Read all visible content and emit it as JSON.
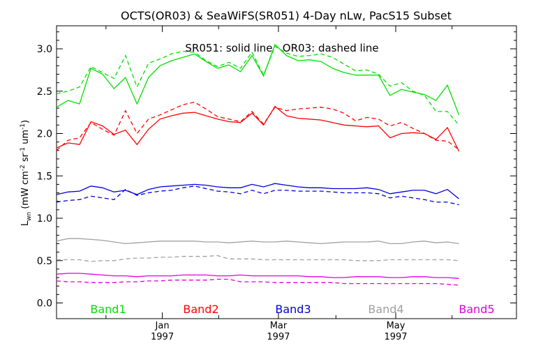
{
  "chart_data": {
    "type": "line",
    "title": "OCTS(OR03) & SeaWiFS(SR051) 4-Day nLw, PacS15 Subset",
    "annotation": "SR051: solid line   OR03: dashed line",
    "ylabel_main": "L",
    "ylabel_sub": "wn",
    "ylabel_units": "(mW cm",
    "ylabel_exp1": "-2",
    "ylabel_mid": " sr",
    "ylabel_exp2": "-1",
    "ylabel_um": " um",
    "ylabel_exp3": "-1",
    "ylabel_close": ")",
    "ylim": [
      -0.2,
      3.25
    ],
    "xlim": [
      0,
      40
    ],
    "yticks": [
      0.0,
      0.5,
      1.0,
      1.5,
      2.0,
      2.5,
      3.0
    ],
    "ytick_labels": [
      "0.0",
      "0.5",
      "1.0",
      "1.5",
      "2.0",
      "2.5",
      "3.0"
    ],
    "xticks": [
      {
        "x": 9.2,
        "month": "Jan",
        "year": "1997"
      },
      {
        "x": 19.3,
        "month": "Mar",
        "year": "1997"
      },
      {
        "x": 29.5,
        "month": "May",
        "year": "1997"
      }
    ],
    "x_minor_ticks": [
      4.3,
      14.1,
      24.3,
      34.4
    ],
    "x_index": [
      0,
      1,
      2,
      3,
      4,
      5,
      6,
      7,
      8,
      9,
      10,
      11,
      12,
      13,
      14,
      15,
      16,
      17,
      18,
      19,
      20,
      21,
      22,
      23,
      24,
      25,
      26,
      27,
      28,
      29,
      30,
      31,
      32,
      33,
      34,
      35,
      36,
      37,
      38,
      39,
      40
    ],
    "grid": false,
    "legend_position": "bottom inside plot",
    "series": [
      {
        "name": "Band1",
        "color": "#00e000",
        "style": "solid",
        "values": [
          2.31,
          2.39,
          2.35,
          2.77,
          2.7,
          2.53,
          2.66,
          2.35,
          2.66,
          2.8,
          2.86,
          2.9,
          2.94,
          2.85,
          2.77,
          2.81,
          2.73,
          2.92,
          2.68,
          3.05,
          2.92,
          2.86,
          2.87,
          2.85,
          2.77,
          2.72,
          2.69,
          2.69,
          2.69,
          2.45,
          2.52,
          2.49,
          2.46,
          2.39,
          2.57,
          2.22
        ]
      },
      {
        "name": "Band1",
        "color": "#00e000",
        "style": "dashed",
        "values": [
          2.47,
          2.5,
          2.55,
          2.79,
          2.72,
          2.65,
          2.92,
          2.55,
          2.83,
          2.88,
          2.94,
          2.97,
          2.96,
          2.86,
          2.79,
          2.84,
          2.77,
          2.96,
          2.69,
          3.03,
          2.95,
          2.91,
          2.92,
          2.94,
          2.9,
          2.82,
          2.74,
          2.75,
          2.7,
          2.56,
          2.6,
          2.5,
          2.45,
          2.26,
          2.26,
          2.1
        ]
      },
      {
        "name": "Band2",
        "color": "#ff0000",
        "style": "solid",
        "values": [
          1.83,
          1.89,
          1.87,
          2.14,
          2.09,
          1.99,
          2.04,
          1.87,
          2.05,
          2.17,
          2.21,
          2.24,
          2.25,
          2.21,
          2.17,
          2.14,
          2.13,
          2.24,
          2.1,
          2.32,
          2.21,
          2.18,
          2.17,
          2.16,
          2.13,
          2.1,
          2.09,
          2.08,
          2.09,
          1.95,
          2.0,
          2.01,
          2.0,
          1.93,
          2.07,
          1.79
        ]
      },
      {
        "name": "Band2",
        "color": "#ff0000",
        "style": "dashed",
        "values": [
          1.8,
          1.92,
          1.95,
          2.13,
          2.05,
          1.98,
          2.27,
          2.0,
          2.17,
          2.22,
          2.28,
          2.34,
          2.37,
          2.29,
          2.2,
          2.17,
          2.14,
          2.26,
          2.11,
          2.31,
          2.27,
          2.29,
          2.3,
          2.31,
          2.29,
          2.24,
          2.15,
          2.19,
          2.17,
          2.09,
          2.13,
          2.06,
          2.0,
          1.92,
          1.91,
          1.81
        ]
      },
      {
        "name": "Band3",
        "color": "#0000dd",
        "style": "solid",
        "values": [
          1.28,
          1.31,
          1.32,
          1.38,
          1.36,
          1.31,
          1.33,
          1.28,
          1.34,
          1.37,
          1.38,
          1.39,
          1.4,
          1.39,
          1.37,
          1.36,
          1.36,
          1.4,
          1.37,
          1.41,
          1.39,
          1.37,
          1.36,
          1.36,
          1.35,
          1.35,
          1.35,
          1.36,
          1.34,
          1.29,
          1.31,
          1.33,
          1.33,
          1.29,
          1.34,
          1.23
        ]
      },
      {
        "name": "Band3",
        "color": "#0000dd",
        "style": "dashed",
        "values": [
          1.19,
          1.21,
          1.22,
          1.26,
          1.24,
          1.22,
          1.34,
          1.27,
          1.3,
          1.32,
          1.33,
          1.36,
          1.38,
          1.35,
          1.32,
          1.31,
          1.29,
          1.33,
          1.29,
          1.33,
          1.33,
          1.32,
          1.32,
          1.32,
          1.31,
          1.3,
          1.3,
          1.3,
          1.29,
          1.24,
          1.26,
          1.24,
          1.22,
          1.19,
          1.19,
          1.16
        ]
      },
      {
        "name": "Band4",
        "color": "#a0a0a0",
        "style": "solid",
        "values": [
          0.73,
          0.76,
          0.76,
          0.75,
          0.74,
          0.72,
          0.7,
          0.71,
          0.72,
          0.73,
          0.73,
          0.73,
          0.73,
          0.72,
          0.72,
          0.71,
          0.72,
          0.73,
          0.72,
          0.72,
          0.73,
          0.72,
          0.71,
          0.7,
          0.71,
          0.72,
          0.72,
          0.72,
          0.73,
          0.7,
          0.7,
          0.72,
          0.73,
          0.71,
          0.72,
          0.7
        ]
      },
      {
        "name": "Band4",
        "color": "#a0a0a0",
        "style": "dashed",
        "values": [
          0.51,
          0.51,
          0.51,
          0.49,
          0.5,
          0.5,
          0.52,
          0.53,
          0.53,
          0.54,
          0.54,
          0.55,
          0.55,
          0.55,
          0.56,
          0.52,
          0.52,
          0.52,
          0.51,
          0.51,
          0.51,
          0.51,
          0.51,
          0.51,
          0.51,
          0.51,
          0.5,
          0.5,
          0.5,
          0.51,
          0.51,
          0.51,
          0.51,
          0.51,
          0.51,
          0.5
        ]
      },
      {
        "name": "Band5",
        "color": "#e000e0",
        "style": "solid",
        "values": [
          0.34,
          0.35,
          0.35,
          0.34,
          0.33,
          0.32,
          0.32,
          0.31,
          0.32,
          0.32,
          0.32,
          0.33,
          0.33,
          0.33,
          0.32,
          0.32,
          0.33,
          0.32,
          0.32,
          0.32,
          0.32,
          0.32,
          0.31,
          0.31,
          0.3,
          0.3,
          0.31,
          0.31,
          0.31,
          0.3,
          0.3,
          0.31,
          0.31,
          0.3,
          0.3,
          0.29
        ]
      },
      {
        "name": "Band5",
        "color": "#e000e0",
        "style": "dashed",
        "values": [
          0.26,
          0.25,
          0.25,
          0.24,
          0.24,
          0.24,
          0.25,
          0.25,
          0.26,
          0.26,
          0.27,
          0.27,
          0.27,
          0.27,
          0.28,
          0.28,
          0.25,
          0.25,
          0.25,
          0.24,
          0.24,
          0.24,
          0.24,
          0.24,
          0.24,
          0.23,
          0.23,
          0.23,
          0.23,
          0.23,
          0.23,
          0.23,
          0.23,
          0.23,
          0.22,
          0.21
        ]
      }
    ],
    "legend": [
      {
        "label": "Band1",
        "color": "#00e000"
      },
      {
        "label": "Band2",
        "color": "#ff0000"
      },
      {
        "label": "Band3",
        "color": "#0000dd"
      },
      {
        "label": "Band4",
        "color": "#a0a0a0"
      },
      {
        "label": "Band5",
        "color": "#e000e0"
      }
    ]
  }
}
